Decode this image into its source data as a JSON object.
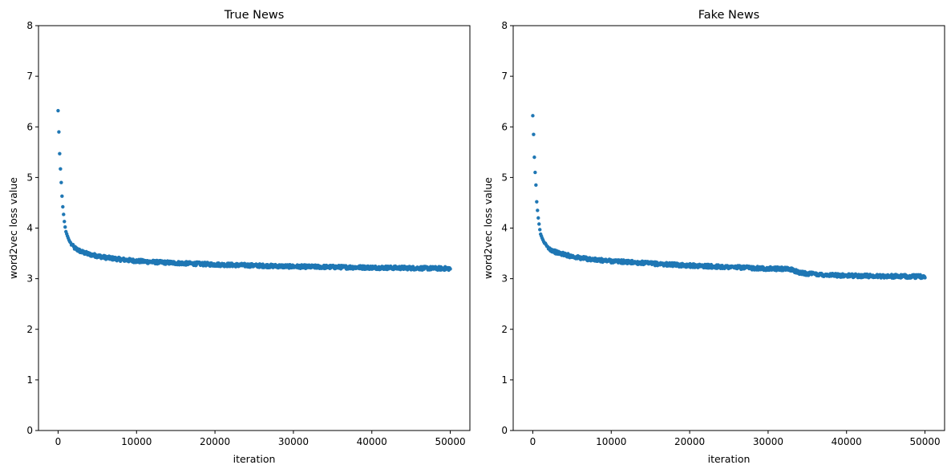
{
  "chart_data": [
    {
      "type": "scatter",
      "title": "True News",
      "xlabel": "iteration",
      "ylabel": "word2vec loss value",
      "xlim": [
        -2500,
        52500
      ],
      "ylim": [
        0,
        8
      ],
      "xticks": [
        0,
        10000,
        20000,
        30000,
        40000,
        50000
      ],
      "yticks": [
        0,
        1,
        2,
        3,
        4,
        5,
        6,
        7,
        8
      ],
      "grid": false,
      "point_color": "#1f77b4",
      "series": [
        {
          "x": [
            0,
            100,
            200,
            300,
            400,
            500,
            600,
            700,
            800,
            900,
            1000,
            1200,
            1400,
            1600,
            1800,
            2000,
            2500,
            3000,
            4000,
            5000,
            6000,
            8000,
            10000,
            12000,
            15000,
            20000,
            25000,
            30000,
            35000,
            40000,
            45000,
            50000
          ],
          "y": [
            6.32,
            5.9,
            5.47,
            5.17,
            4.9,
            4.63,
            4.42,
            4.27,
            4.13,
            4.02,
            3.93,
            3.84,
            3.76,
            3.7,
            3.66,
            3.62,
            3.57,
            3.53,
            3.48,
            3.45,
            3.42,
            3.38,
            3.35,
            3.33,
            3.31,
            3.28,
            3.26,
            3.24,
            3.23,
            3.22,
            3.21,
            3.2
          ]
        }
      ]
    },
    {
      "type": "scatter",
      "title": "Fake News",
      "xlabel": "iteration",
      "ylabel": "word2vec loss value",
      "xlim": [
        -2500,
        52500
      ],
      "ylim": [
        0,
        8
      ],
      "xticks": [
        0,
        10000,
        20000,
        30000,
        40000,
        50000
      ],
      "yticks": [
        0,
        1,
        2,
        3,
        4,
        5,
        6,
        7,
        8
      ],
      "grid": false,
      "point_color": "#1f77b4",
      "series": [
        {
          "x": [
            0,
            100,
            200,
            300,
            400,
            500,
            600,
            700,
            800,
            900,
            1000,
            1200,
            1400,
            1600,
            1800,
            2000,
            2500,
            3000,
            4000,
            5000,
            6000,
            8000,
            10000,
            12000,
            15000,
            20000,
            25000,
            30000,
            32000,
            33000,
            34000,
            35000,
            37000,
            40000,
            45000,
            50000
          ],
          "y": [
            6.22,
            5.85,
            5.4,
            5.1,
            4.85,
            4.52,
            4.35,
            4.2,
            4.08,
            3.97,
            3.88,
            3.8,
            3.73,
            3.67,
            3.63,
            3.6,
            3.56,
            3.52,
            3.48,
            3.44,
            3.41,
            3.37,
            3.35,
            3.33,
            3.3,
            3.26,
            3.23,
            3.2,
            3.19,
            3.18,
            3.12,
            3.1,
            3.08,
            3.06,
            3.05,
            3.04
          ]
        }
      ]
    }
  ]
}
